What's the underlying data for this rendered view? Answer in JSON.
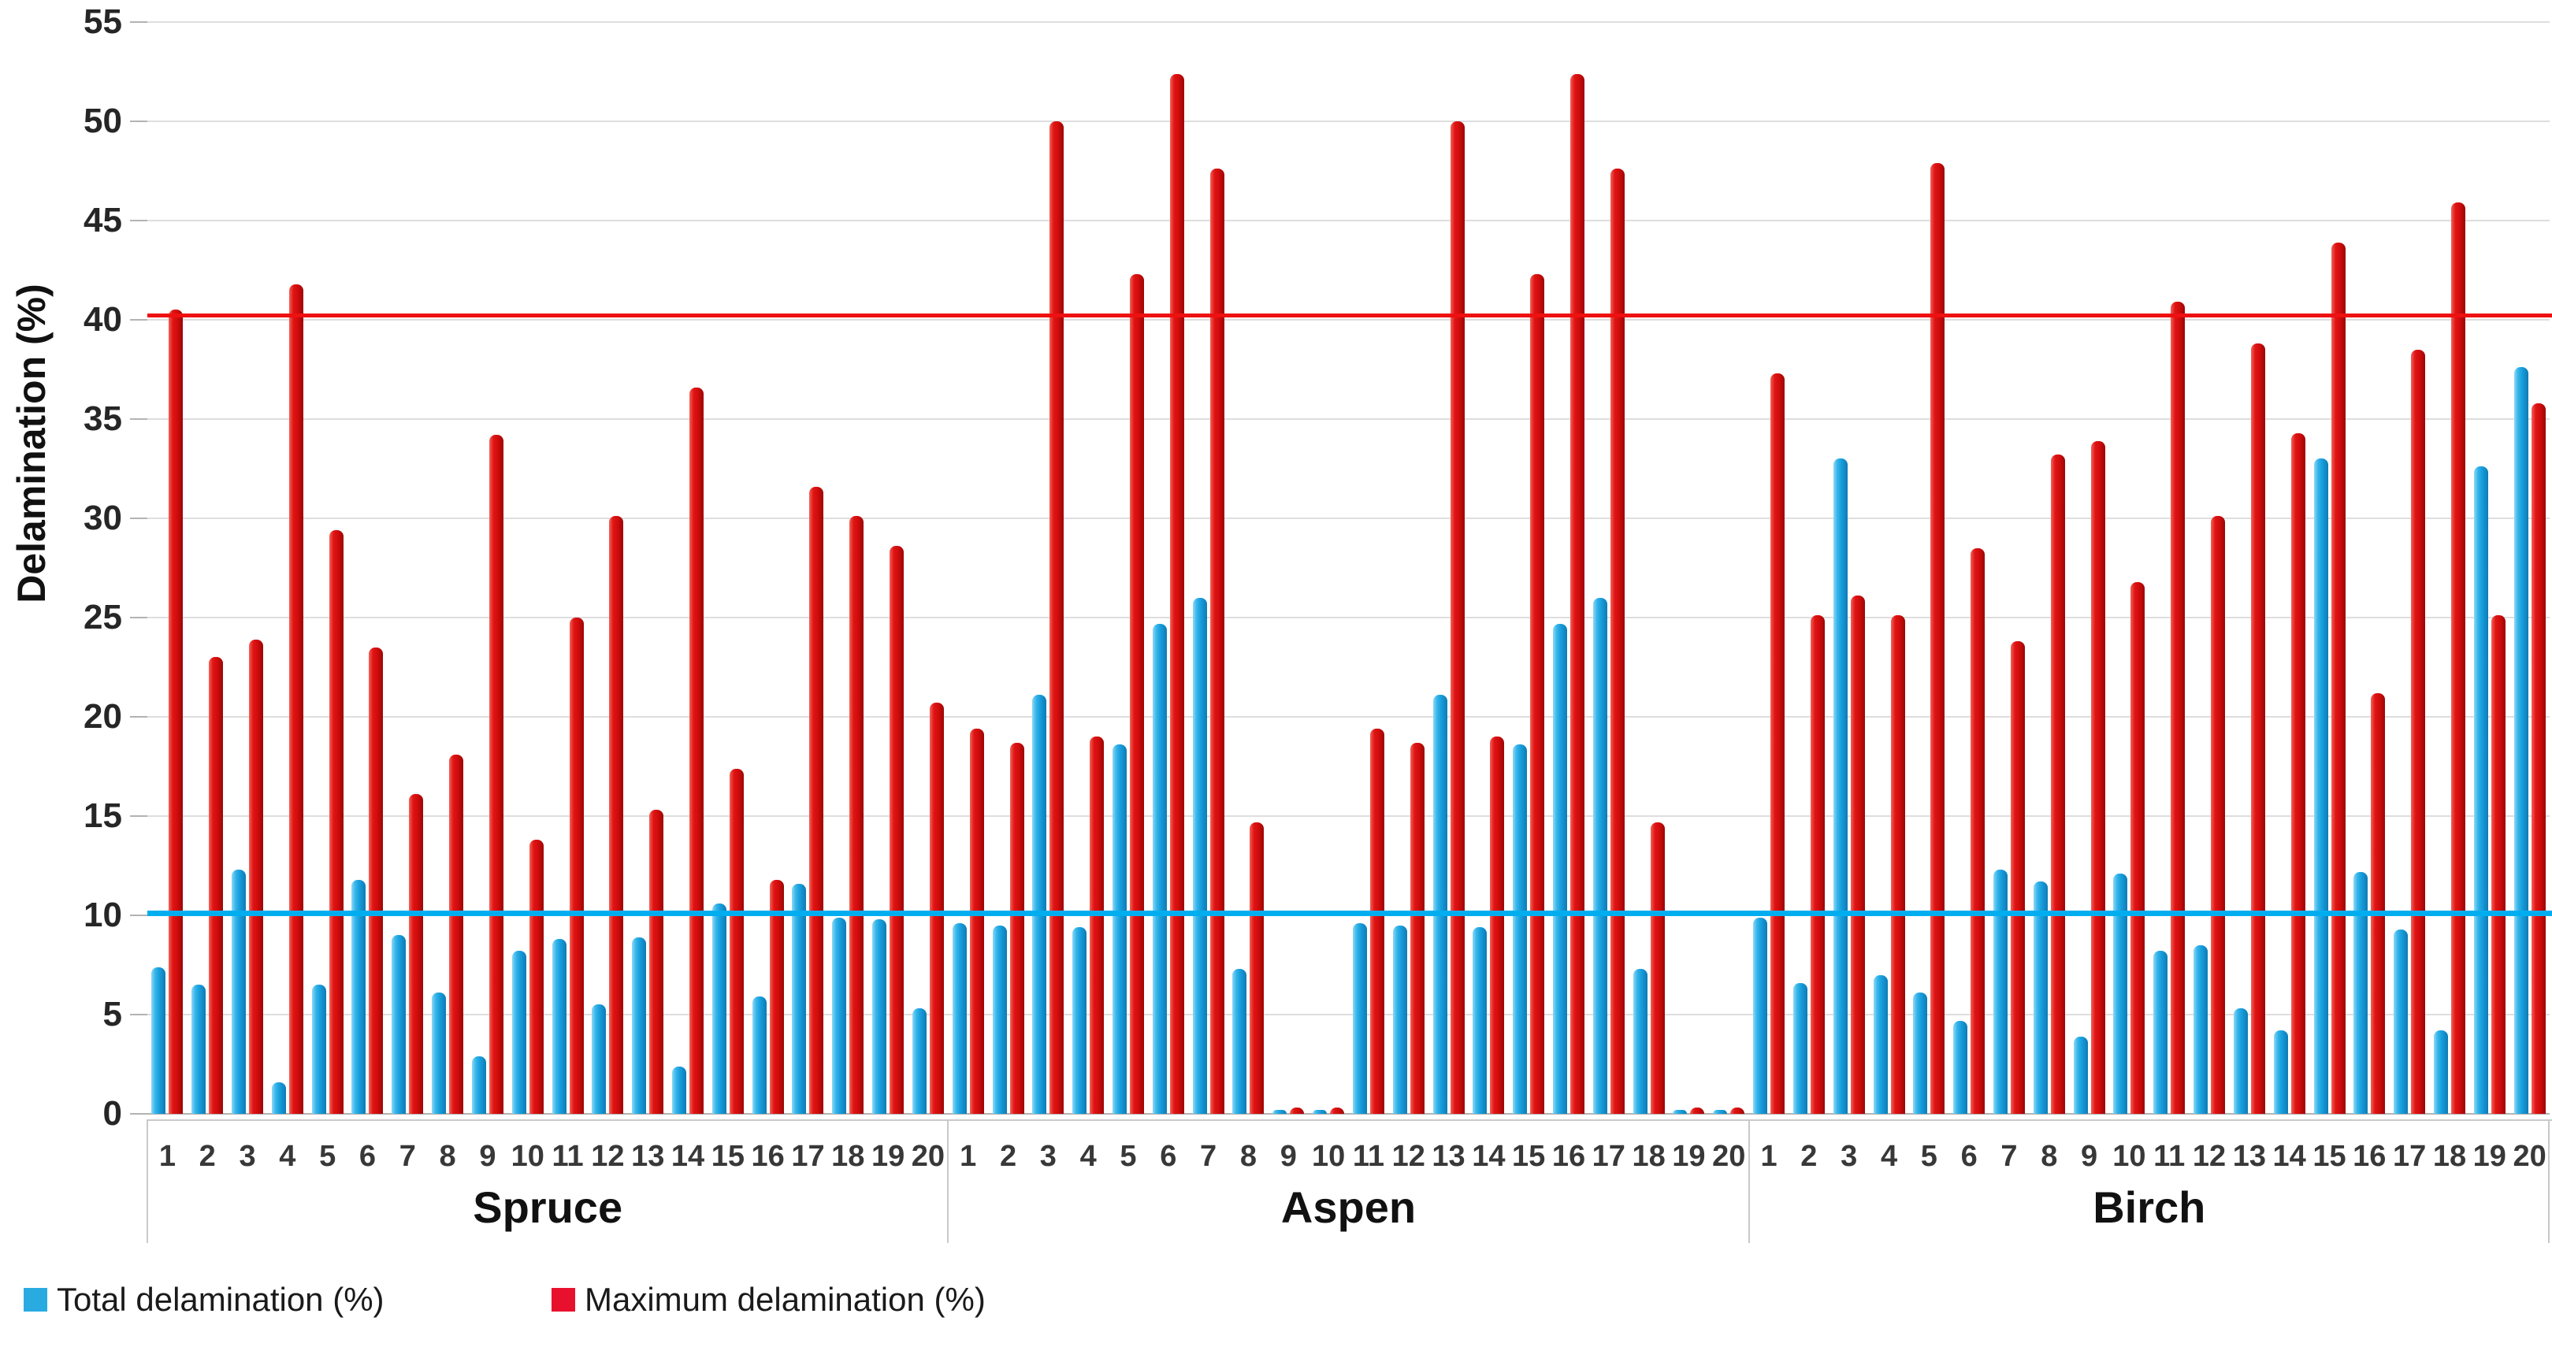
{
  "figure": {
    "y_axis_title": "Delamination (%)"
  },
  "legend": {
    "items": [
      {
        "label": "Total delamination (%)",
        "color": "#29abe2"
      },
      {
        "label": "Maximum delamination (%)",
        "color": "#e8112d"
      }
    ]
  },
  "chart_data": {
    "type": "bar",
    "title": "",
    "xlabel": "",
    "ylabel": "Delamination (%)",
    "ylim": [
      0,
      55
    ],
    "ytick_step": 5,
    "yticks": [
      0,
      5,
      10,
      15,
      20,
      25,
      30,
      35,
      40,
      45,
      50,
      55
    ],
    "grid": true,
    "legend_position": "bottom-left",
    "groups": [
      "Spruce",
      "Aspen",
      "Birch"
    ],
    "categories": [
      "1",
      "2",
      "3",
      "4",
      "5",
      "6",
      "7",
      "8",
      "9",
      "10",
      "11",
      "12",
      "13",
      "14",
      "15",
      "16",
      "17",
      "18",
      "19",
      "20"
    ],
    "series": [
      {
        "name": "Total delamination (%)",
        "color": "#29abe2",
        "values": {
          "Spruce": [
            7.4,
            6.5,
            12.3,
            1.6,
            6.5,
            11.8,
            9.0,
            6.1,
            2.9,
            8.2,
            8.8,
            5.5,
            8.9,
            2.4,
            10.6,
            5.9,
            11.6,
            9.9,
            9.8,
            5.3
          ],
          "Aspen": [
            9.6,
            9.5,
            21.1,
            9.4,
            18.6,
            24.7,
            26.0,
            7.3,
            0.2,
            0.2,
            9.6,
            9.5,
            21.1,
            9.4,
            18.6,
            24.7,
            26.0,
            7.3,
            0.2,
            0.2
          ],
          "Birch": [
            9.9,
            6.6,
            33.0,
            7.0,
            6.1,
            4.7,
            12.3,
            11.7,
            3.9,
            12.1,
            8.2,
            8.5,
            5.3,
            4.2,
            33.0,
            12.2,
            9.3,
            4.2,
            32.6,
            37.6
          ]
        }
      },
      {
        "name": "Maximum delamination (%)",
        "color": "#e8112d",
        "values": {
          "Spruce": [
            40.5,
            23.0,
            23.9,
            41.8,
            29.4,
            23.5,
            16.1,
            18.1,
            34.2,
            13.8,
            25.0,
            30.1,
            15.3,
            36.6,
            17.4,
            11.8,
            31.6,
            30.1,
            28.6,
            20.7
          ],
          "Aspen": [
            19.4,
            18.7,
            50.0,
            19.0,
            42.3,
            52.4,
            47.6,
            14.7,
            0.3,
            0.3,
            19.4,
            18.7,
            50.0,
            19.0,
            42.3,
            52.4,
            47.6,
            14.7,
            0.3,
            0.3
          ],
          "Birch": [
            37.3,
            25.1,
            26.1,
            25.1,
            47.9,
            28.5,
            23.8,
            33.2,
            33.9,
            26.8,
            40.9,
            30.1,
            38.8,
            34.3,
            43.9,
            21.2,
            38.5,
            45.9,
            25.1,
            35.8
          ]
        }
      }
    ],
    "reference_lines": [
      {
        "series": "Maximum delamination (%)",
        "value": 40.2,
        "color": "#ee1111"
      },
      {
        "series": "Total delamination (%)",
        "value": 10.1,
        "color": "#00aeef"
      }
    ]
  }
}
